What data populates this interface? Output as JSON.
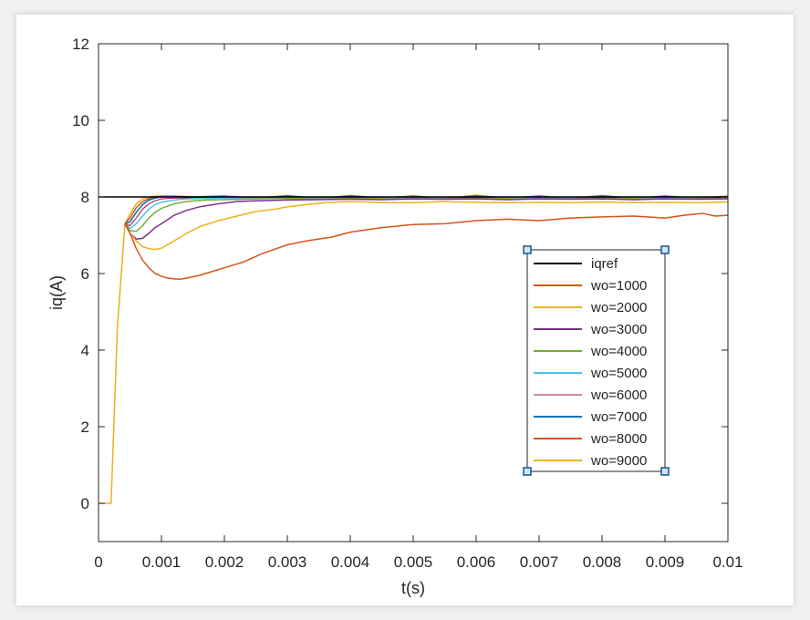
{
  "chart_data": {
    "type": "line",
    "xlabel": "t(s)",
    "ylabel": "iq(A)",
    "xlim": [
      0,
      0.01
    ],
    "ylim": [
      -1,
      12
    ],
    "xticks": [
      {
        "value": 0,
        "label": "0"
      },
      {
        "value": 0.001,
        "label": "0.001"
      },
      {
        "value": 0.002,
        "label": "0.002"
      },
      {
        "value": 0.003,
        "label": "0.003"
      },
      {
        "value": 0.004,
        "label": "0.004"
      },
      {
        "value": 0.005,
        "label": "0.005"
      },
      {
        "value": 0.006,
        "label": "0.006"
      },
      {
        "value": 0.007,
        "label": "0.007"
      },
      {
        "value": 0.008,
        "label": "0.008"
      },
      {
        "value": 0.009,
        "label": "0.009"
      },
      {
        "value": 0.01,
        "label": "0.01"
      }
    ],
    "yticks": [
      {
        "value": 0,
        "label": "0"
      },
      {
        "value": 2,
        "label": "2"
      },
      {
        "value": 4,
        "label": "4"
      },
      {
        "value": 6,
        "label": "6"
      },
      {
        "value": 8,
        "label": "8"
      },
      {
        "value": 10,
        "label": "10"
      },
      {
        "value": 12,
        "label": "12"
      }
    ],
    "grid": false,
    "legend_position": "lower-right",
    "series": [
      {
        "name": "iqref",
        "color": "#000000",
        "x": [
          0,
          0.01
        ],
        "y": [
          8,
          8
        ]
      },
      {
        "name": "wo=1000",
        "color": "#d95319",
        "x": [
          0.00042,
          0.0005,
          0.0006,
          0.0007,
          0.0008,
          0.0009,
          0.001,
          0.0011,
          0.0012,
          0.0013,
          0.0014,
          0.0016,
          0.0018,
          0.002,
          0.0023,
          0.0026,
          0.003,
          0.0033,
          0.0037,
          0.004,
          0.0045,
          0.005,
          0.0055,
          0.006,
          0.0065,
          0.007,
          0.0075,
          0.008,
          0.0085,
          0.009,
          0.0093,
          0.0096,
          0.0098,
          0.01
        ],
        "y": [
          7.3,
          7.05,
          6.65,
          6.35,
          6.15,
          6.0,
          5.93,
          5.88,
          5.86,
          5.85,
          5.88,
          5.95,
          6.05,
          6.15,
          6.3,
          6.52,
          6.75,
          6.85,
          6.95,
          7.08,
          7.2,
          7.28,
          7.3,
          7.38,
          7.42,
          7.38,
          7.45,
          7.48,
          7.5,
          7.45,
          7.52,
          7.57,
          7.5,
          7.52
        ]
      },
      {
        "name": "wo=2000",
        "color": "#edb120",
        "x": [
          0.00042,
          0.0005,
          0.0006,
          0.0007,
          0.0008,
          0.0009,
          0.001,
          0.0012,
          0.0014,
          0.0016,
          0.0019,
          0.0022,
          0.0025,
          0.0028,
          0.003,
          0.0033,
          0.0036,
          0.004,
          0.0045,
          0.005,
          0.0055,
          0.006,
          0.0065,
          0.007,
          0.0075,
          0.008,
          0.0085,
          0.009,
          0.0095,
          0.01
        ],
        "y": [
          7.3,
          7.05,
          6.85,
          6.7,
          6.65,
          6.63,
          6.66,
          6.85,
          7.05,
          7.22,
          7.38,
          7.5,
          7.62,
          7.68,
          7.74,
          7.8,
          7.85,
          7.88,
          7.85,
          7.85,
          7.88,
          7.86,
          7.85,
          7.86,
          7.85,
          7.87,
          7.85,
          7.86,
          7.85,
          7.87
        ]
      },
      {
        "name": "wo=3000",
        "color": "#7e2f8e",
        "x": [
          0.00042,
          0.0005,
          0.0006,
          0.0007,
          0.0008,
          0.0009,
          0.001,
          0.0012,
          0.0014,
          0.0016,
          0.0019,
          0.0022,
          0.0025,
          0.003,
          0.0035,
          0.004,
          0.0045,
          0.005,
          0.0055,
          0.006,
          0.0065,
          0.007,
          0.0075,
          0.008,
          0.0085,
          0.009,
          0.0095,
          0.01
        ],
        "y": [
          7.3,
          7.05,
          6.9,
          6.92,
          7.05,
          7.2,
          7.3,
          7.52,
          7.65,
          7.74,
          7.82,
          7.88,
          7.9,
          7.92,
          7.93,
          7.94,
          7.93,
          7.95,
          7.94,
          7.95,
          7.93,
          7.95,
          7.94,
          7.95,
          7.93,
          7.95,
          7.94,
          7.95
        ]
      },
      {
        "name": "wo=4000",
        "color": "#77ac30",
        "x": [
          0.00042,
          0.0005,
          0.0006,
          0.0007,
          0.0008,
          0.0009,
          0.001,
          0.0012,
          0.0014,
          0.0017,
          0.002,
          0.0025,
          0.003,
          0.0035,
          0.004,
          0.005,
          0.006,
          0.007,
          0.008,
          0.009,
          0.01
        ],
        "y": [
          7.3,
          7.12,
          7.1,
          7.25,
          7.45,
          7.6,
          7.7,
          7.82,
          7.88,
          7.92,
          7.93,
          7.95,
          7.96,
          7.95,
          7.96,
          7.95,
          7.96,
          7.95,
          7.96,
          7.95,
          7.96
        ]
      },
      {
        "name": "wo=5000",
        "color": "#4dbeee",
        "x": [
          0.00042,
          0.0005,
          0.0006,
          0.0007,
          0.0008,
          0.0009,
          0.001,
          0.0012,
          0.0014,
          0.0017,
          0.002,
          0.0025,
          0.003,
          0.004,
          0.005,
          0.006,
          0.007,
          0.008,
          0.009,
          0.01
        ],
        "y": [
          7.3,
          7.18,
          7.3,
          7.5,
          7.68,
          7.8,
          7.86,
          7.92,
          7.95,
          7.96,
          7.97,
          7.96,
          7.97,
          7.96,
          7.97,
          7.96,
          7.97,
          7.96,
          7.97,
          7.96
        ]
      },
      {
        "name": "wo=6000",
        "color": "#a2142f",
        "x": [
          0.00042,
          0.0005,
          0.0006,
          0.0007,
          0.0008,
          0.0009,
          0.001,
          0.0012,
          0.0015,
          0.002,
          0.003,
          0.004,
          0.005,
          0.006,
          0.007,
          0.008,
          0.009,
          0.01
        ],
        "y": [
          7.3,
          7.25,
          7.45,
          7.68,
          7.82,
          7.9,
          7.95,
          7.97,
          7.98,
          7.98,
          7.99,
          7.98,
          7.99,
          7.98,
          7.99,
          7.98,
          7.99,
          7.98
        ]
      },
      {
        "name": "wo=7000",
        "color": "#0072bd",
        "x": [
          0.00042,
          0.0005,
          0.0006,
          0.0007,
          0.0008,
          0.0009,
          0.001,
          0.0012,
          0.0015,
          0.002,
          0.0025,
          0.003,
          0.0035,
          0.004,
          0.0045,
          0.005,
          0.0055,
          0.006,
          0.0065,
          0.007,
          0.0075,
          0.008,
          0.0085,
          0.009,
          0.0095,
          0.01
        ],
        "y": [
          7.3,
          7.35,
          7.6,
          7.8,
          7.92,
          7.97,
          8.0,
          8.01,
          8.0,
          8.01,
          7.98,
          8.02,
          7.97,
          8.02,
          7.98,
          8.01,
          7.97,
          8.02,
          7.98,
          8.01,
          7.97,
          8.02,
          7.98,
          8.01,
          7.98,
          8.01
        ]
      },
      {
        "name": "wo=8000",
        "color": "#d95319",
        "x": [
          0.00042,
          0.0005,
          0.0006,
          0.0007,
          0.0008,
          0.0009,
          0.001,
          0.0012,
          0.0015,
          0.002,
          0.0025,
          0.003,
          0.0035,
          0.004,
          0.0045,
          0.005,
          0.0055,
          0.006,
          0.0065,
          0.007,
          0.0075,
          0.008,
          0.0085,
          0.009,
          0.0095,
          0.01
        ],
        "y": [
          7.3,
          7.45,
          7.72,
          7.88,
          7.96,
          8.0,
          8.01,
          8.02,
          8.0,
          8.02,
          7.97,
          8.03,
          7.96,
          8.03,
          7.97,
          8.02,
          7.96,
          8.03,
          7.97,
          8.02,
          7.96,
          8.03,
          7.97,
          8.02,
          7.97,
          8.02
        ]
      },
      {
        "name": "wo=9000",
        "color": "#edb120",
        "x": [
          0,
          0.00015,
          0.0002,
          0.0003,
          0.00042,
          0.0005,
          0.0006,
          0.0007,
          0.0008,
          0.0009,
          0.001,
          0.0012,
          0.0015,
          0.002,
          0.0025,
          0.003,
          0.0035,
          0.004,
          0.0045,
          0.005,
          0.0055,
          0.006,
          0.0065,
          0.007,
          0.0075,
          0.008,
          0.0085,
          0.009,
          0.0095,
          0.01
        ],
        "y": [
          0,
          0,
          0,
          4.6,
          7.3,
          7.55,
          7.82,
          7.95,
          8.0,
          8.02,
          8.03,
          8.02,
          8.0,
          8.03,
          7.96,
          8.04,
          7.96,
          8.04,
          7.97,
          8.03,
          7.96,
          8.05,
          7.96,
          8.03,
          7.97,
          8.04,
          7.96,
          8.03,
          7.97,
          8.02
        ]
      }
    ]
  }
}
